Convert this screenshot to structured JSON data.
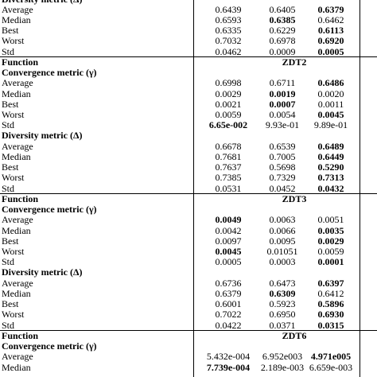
{
  "blocks": [
    {
      "metrics": [
        {
          "name": "Diversity metric (Δ)",
          "rows": [
            {
              "label": "Average",
              "values": [
                "0.6439",
                "0.6405",
                "0.6379"
              ],
              "bold": 2
            },
            {
              "label": "Median",
              "values": [
                "0.6593",
                "0.6385",
                "0.6462"
              ],
              "bold": 1
            },
            {
              "label": "Best",
              "values": [
                "0.6335",
                "0.6229",
                "0.6113"
              ],
              "bold": 2
            },
            {
              "label": "Worst",
              "values": [
                "0.7032",
                "0.6978",
                "0.6920"
              ],
              "bold": 2
            },
            {
              "label": "Std",
              "values": [
                "0.0462",
                "0.0009",
                "0.0005"
              ],
              "bold": 2
            }
          ]
        }
      ]
    },
    {
      "function_label": "Function",
      "function": "ZDT2",
      "metrics": [
        {
          "name": "Convergence metric (γ)",
          "rows": [
            {
              "label": "Average",
              "values": [
                "0.6998",
                "0.6711",
                "0.6486"
              ],
              "bold": 2
            },
            {
              "label": "Median",
              "values": [
                "0.0029",
                "0.0019",
                "0.0020"
              ],
              "bold": 1
            },
            {
              "label": "Best",
              "values": [
                "0.0021",
                "0.0007",
                "0.0011"
              ],
              "bold": 1
            },
            {
              "label": "Worst",
              "values": [
                "0.0059",
                "0.0054",
                "0.0045"
              ],
              "bold": 2
            },
            {
              "label": "Std",
              "values": [
                "6.65e-002",
                "9.93e-01",
                "9.89e-01"
              ],
              "bold": 0
            }
          ]
        },
        {
          "name": "Diversity metric (Δ)",
          "rows": [
            {
              "label": "Average",
              "values": [
                "0.6678",
                "0.6539",
                "0.6489"
              ],
              "bold": 2
            },
            {
              "label": "Median",
              "values": [
                "0.7681",
                "0.7005",
                "0.6449"
              ],
              "bold": 2
            },
            {
              "label": "Best",
              "values": [
                "0.7637",
                "0.5698",
                "0.5290"
              ],
              "bold": 2
            },
            {
              "label": "Worst",
              "values": [
                "0.7385",
                "0.7329",
                "0.7313"
              ],
              "bold": 2
            },
            {
              "label": "Std",
              "values": [
                "0.0531",
                "0.0452",
                "0.0432"
              ],
              "bold": 2
            }
          ]
        }
      ]
    },
    {
      "function_label": "Function",
      "function": "ZDT3",
      "metrics": [
        {
          "name": "Convergence metric (γ)",
          "rows": [
            {
              "label": "Average",
              "values": [
                "0.0049",
                "0.0063",
                "0.0051"
              ],
              "bold": 0
            },
            {
              "label": "Median",
              "values": [
                "0.0042",
                "0.0066",
                "0.0035"
              ],
              "bold": 2
            },
            {
              "label": "Best",
              "values": [
                "0.0097",
                "0.0095",
                "0.0029"
              ],
              "bold": 2
            },
            {
              "label": "Worst",
              "values": [
                "0.0045",
                "0.01051",
                "0.0059"
              ],
              "bold": 0
            },
            {
              "label": "Std",
              "values": [
                "0.0005",
                "0.0003",
                "0.0001"
              ],
              "bold": 2
            }
          ]
        },
        {
          "name": "Diversity metric (Δ)",
          "rows": [
            {
              "label": "Average",
              "values": [
                "0.6736",
                "0.6473",
                "0.6397"
              ],
              "bold": 2
            },
            {
              "label": "Median",
              "values": [
                "0.6379",
                "0.6309",
                "0.6412"
              ],
              "bold": 1
            },
            {
              "label": "Best",
              "values": [
                "0.6001",
                "0.5923",
                "0.5896"
              ],
              "bold": 2
            },
            {
              "label": "Worst",
              "values": [
                "0.7022",
                "0.6950",
                "0.6930"
              ],
              "bold": 2
            },
            {
              "label": "Std",
              "values": [
                "0.0422",
                "0.0371",
                "0.0315"
              ],
              "bold": 2
            }
          ]
        }
      ]
    },
    {
      "function_label": "Function",
      "function": "ZDT6",
      "metrics": [
        {
          "name": "Convergence metric (γ)",
          "rows": [
            {
              "label": "Average",
              "values": [
                "5.432e-004",
                "6.952e003",
                "4.971e005"
              ],
              "bold": 2
            },
            {
              "label": "Median",
              "values": [
                "7.739e-004",
                "2.189e-003",
                "6.659e-003"
              ],
              "bold": 0
            }
          ]
        }
      ]
    }
  ]
}
